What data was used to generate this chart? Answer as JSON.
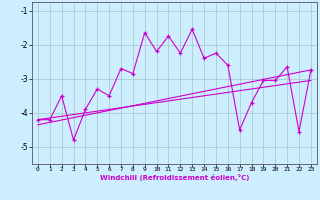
{
  "xlabel": "Windchill (Refroidissement éolien,°C)",
  "x": [
    0,
    1,
    2,
    3,
    4,
    5,
    6,
    7,
    8,
    9,
    10,
    11,
    12,
    13,
    14,
    15,
    16,
    17,
    18,
    19,
    20,
    21,
    22,
    23
  ],
  "y_main": [
    -4.2,
    -4.2,
    -3.5,
    -4.8,
    -3.9,
    -3.3,
    -3.5,
    -2.7,
    -2.85,
    -1.65,
    -2.2,
    -1.75,
    -2.25,
    -1.55,
    -2.4,
    -2.25,
    -2.6,
    -4.5,
    -3.7,
    -3.05,
    -3.05,
    -2.65,
    -4.55,
    -2.75
  ],
  "y_line1": [
    -4.2,
    -4.15,
    -4.1,
    -4.05,
    -4.0,
    -3.95,
    -3.9,
    -3.85,
    -3.8,
    -3.75,
    -3.7,
    -3.65,
    -3.6,
    -3.55,
    -3.5,
    -3.45,
    -3.4,
    -3.35,
    -3.3,
    -3.25,
    -3.2,
    -3.15,
    -3.1,
    -3.05
  ],
  "y_line2": [
    -4.35,
    -4.28,
    -4.21,
    -4.14,
    -4.07,
    -4.0,
    -3.93,
    -3.86,
    -3.79,
    -3.72,
    -3.65,
    -3.58,
    -3.51,
    -3.44,
    -3.37,
    -3.3,
    -3.23,
    -3.16,
    -3.09,
    -3.02,
    -2.95,
    -2.88,
    -2.81,
    -2.74
  ],
  "bg_color": "#cceeff",
  "grid_color": "#aacccc",
  "line_color": "#cc00cc",
  "marker": "+",
  "ylim": [
    -5.5,
    -0.75
  ],
  "xlim": [
    -0.5,
    23.5
  ],
  "yticks": [
    -5,
    -4,
    -3,
    -2,
    -1
  ],
  "xticks": [
    0,
    1,
    2,
    3,
    4,
    5,
    6,
    7,
    8,
    9,
    10,
    11,
    12,
    13,
    14,
    15,
    16,
    17,
    18,
    19,
    20,
    21,
    22,
    23
  ]
}
